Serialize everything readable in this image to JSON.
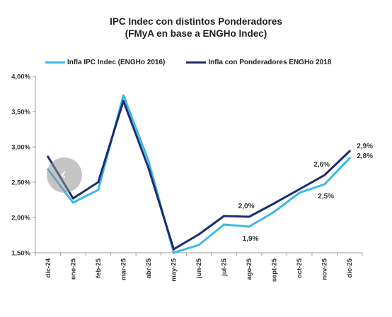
{
  "chart_data": {
    "type": "line",
    "title": "IPC Indec con distintos Ponderadores",
    "subtitle": "(FMyA en base a ENGHo Indec)",
    "xlabel": "",
    "ylabel": "",
    "categories": [
      "dic-24",
      "ene-25",
      "feb-25",
      "mar-25",
      "abr-25",
      "may-25",
      "jun-25",
      "jul-25",
      "ago-25",
      "sept-25",
      "oct-25",
      "nov-25",
      "dic-25"
    ],
    "ylim": [
      1.5,
      4.0
    ],
    "yticks": [
      "1,50%",
      "2,00%",
      "2,50%",
      "3,00%",
      "3,50%",
      "4,00%"
    ],
    "ytick_values": [
      1.5,
      2.0,
      2.5,
      3.0,
      3.5,
      4.0
    ],
    "grid": false,
    "legend_position": "top",
    "series": [
      {
        "name": "Infla IPC Indec (ENGHo 2016)",
        "color": "#3db8e6",
        "values": [
          2.68,
          2.21,
          2.39,
          3.73,
          2.8,
          1.5,
          1.61,
          1.9,
          1.87,
          2.08,
          2.35,
          2.47,
          2.84
        ],
        "labels": [
          {
            "index": 8,
            "text": "1,9%",
            "position": "below"
          },
          {
            "index": 11,
            "text": "2,5%",
            "position": "below"
          },
          {
            "index": 12,
            "text": "2,8%",
            "position": "right"
          }
        ]
      },
      {
        "name": "Infla con Ponderadores ENGHo 2018",
        "color": "#1c2c6e",
        "values": [
          2.86,
          2.27,
          2.5,
          3.65,
          2.7,
          1.55,
          1.76,
          2.02,
          2.01,
          2.2,
          2.4,
          2.6,
          2.94
        ],
        "labels": [
          {
            "index": 8,
            "text": "2,0%",
            "position": "above"
          },
          {
            "index": 11,
            "text": "2,6%",
            "position": "above"
          },
          {
            "index": 12,
            "text": "2,9%",
            "position": "right"
          }
        ]
      }
    ]
  },
  "overlay": {
    "nav_glyph": "‹",
    "nav_icon": "chevron-left-icon"
  }
}
